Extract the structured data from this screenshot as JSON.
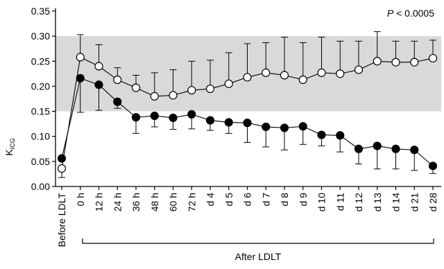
{
  "chart_data": {
    "type": "line",
    "annotation": {
      "p_symbol": "P",
      "rest": " < 0.0005"
    },
    "ylabel": {
      "main": "K",
      "sub": "ICG"
    },
    "ylim": [
      0,
      0.35
    ],
    "yticks": [
      "0.00",
      "0.05",
      "0.10",
      "0.15",
      "0.20",
      "0.25",
      "0.30",
      "0.35"
    ],
    "normal_range": [
      0.15,
      0.3
    ],
    "categories": [
      "Before LDLT",
      "0 h",
      "12 h",
      "24 h",
      "36 h",
      "48 h",
      "60 h",
      "72 h",
      "d 4",
      "d 5",
      "d 6",
      "d 7",
      "d 8",
      "d 9",
      "d 10",
      "d 11",
      "d 12",
      "d 13",
      "d 14",
      "d 21",
      "d 28"
    ],
    "group_label": "After LDLT",
    "series": [
      {
        "marker": "open",
        "values": [
          0.036,
          0.258,
          0.24,
          0.213,
          0.197,
          0.18,
          0.182,
          0.192,
          0.195,
          0.205,
          0.218,
          0.227,
          0.222,
          0.213,
          0.227,
          0.225,
          0.233,
          0.25,
          0.248,
          0.248,
          0.256
        ],
        "error_upper": [
          0,
          0.303,
          0.283,
          0.237,
          0.222,
          0.227,
          0.233,
          0.25,
          0.252,
          0.267,
          0.285,
          0.287,
          0.298,
          0.287,
          0.298,
          0.29,
          0.29,
          0.309,
          0.29,
          0.29,
          0.292
        ],
        "error_lower": [
          0.018,
          0,
          0,
          0,
          0,
          0,
          0,
          0,
          0,
          0,
          0,
          0,
          0,
          0,
          0,
          0,
          0,
          0,
          0,
          0,
          0
        ]
      },
      {
        "marker": "filled",
        "values": [
          0.056,
          0.216,
          0.203,
          0.169,
          0.138,
          0.141,
          0.137,
          0.144,
          0.132,
          0.128,
          0.127,
          0.119,
          0.117,
          0.12,
          0.103,
          0.102,
          0.075,
          0.081,
          0.075,
          0.073,
          0.041
        ],
        "error_upper": [
          0,
          0,
          0,
          0,
          0,
          0,
          0,
          0,
          0,
          0,
          0,
          0,
          0,
          0,
          0,
          0,
          0,
          0,
          0,
          0,
          0
        ],
        "error_lower": [
          0,
          0.148,
          0.152,
          0.156,
          0.106,
          0.119,
          0.114,
          0.115,
          0.112,
          0.106,
          0.088,
          0.079,
          0.073,
          0.084,
          0.081,
          0.069,
          0.045,
          0.035,
          0.035,
          0.032,
          0.026
        ]
      }
    ]
  }
}
